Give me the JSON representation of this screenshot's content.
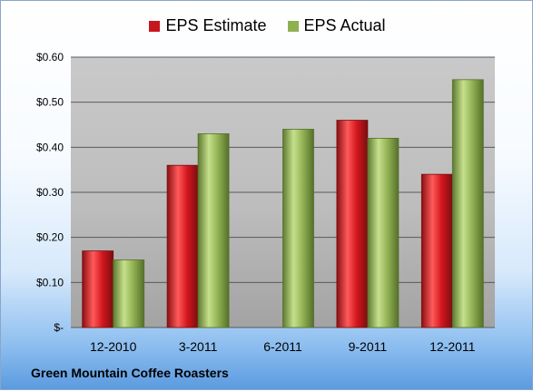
{
  "legend": {
    "estimate_label": "EPS Estimate",
    "actual_label": "EPS Actual"
  },
  "footer": {
    "company": "Green Mountain Coffee Roasters"
  },
  "colors": {
    "estimate": "#c8161d",
    "estimate_dark": "#7a0e10",
    "estimate_light": "#ff6a6a",
    "actual": "#8fb050",
    "actual_dark": "#55702b",
    "actual_light": "#c6e08c",
    "gridline": "#5a5a5a",
    "axis_text": "#000000"
  },
  "chart_data": {
    "type": "bar",
    "title": "",
    "xlabel": "",
    "ylabel": "",
    "categories": [
      "12-2010",
      "3-2011",
      "6-2011",
      "9-2011",
      "12-2011"
    ],
    "series": [
      {
        "name": "EPS Estimate",
        "values": [
          0.17,
          0.36,
          null,
          0.46,
          0.34
        ]
      },
      {
        "name": "EPS Actual",
        "values": [
          0.15,
          0.43,
          0.44,
          0.42,
          0.55
        ]
      }
    ],
    "ylim": [
      0,
      0.6
    ],
    "yticks": [
      0,
      0.1,
      0.2,
      0.3,
      0.4,
      0.5,
      0.6
    ],
    "ytick_labels": [
      "$-",
      "$0.10",
      "$0.20",
      "$0.30",
      "$0.40",
      "$0.50",
      "$0.60"
    ],
    "grid": true,
    "legend_position": "top"
  }
}
